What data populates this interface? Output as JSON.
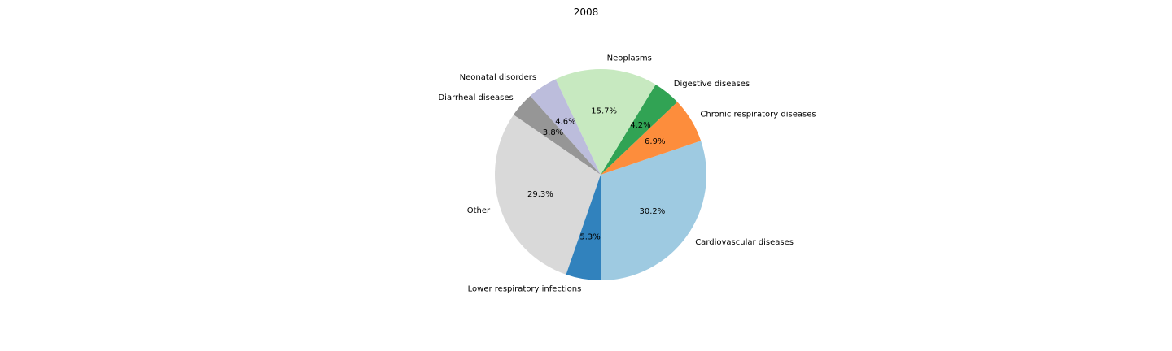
{
  "chart_data": {
    "type": "pie",
    "title": "2008",
    "start_angle_deg": 270,
    "direction": "counterclockwise",
    "slices": [
      {
        "label": "Cardiovascular diseases",
        "value": 30.2,
        "pct_label": "30.2%",
        "color": "#9ecae1"
      },
      {
        "label": "Chronic respiratory diseases",
        "value": 6.9,
        "pct_label": "6.9%",
        "color": "#fd8d3c"
      },
      {
        "label": "Digestive diseases",
        "value": 4.2,
        "pct_label": "4.2%",
        "color": "#31a354"
      },
      {
        "label": "Neoplasms",
        "value": 15.7,
        "pct_label": "15.7%",
        "color": "#c7e9c0"
      },
      {
        "label": "Neonatal disorders",
        "value": 4.6,
        "pct_label": "4.6%",
        "color": "#bcbddc"
      },
      {
        "label": "Diarrheal diseases",
        "value": 3.8,
        "pct_label": "3.8%",
        "color": "#969696"
      },
      {
        "label": "Other",
        "value": 29.3,
        "pct_label": "29.3%",
        "color": "#d9d9d9"
      },
      {
        "label": "Lower respiratory infections",
        "value": 5.3,
        "pct_label": "5.3%",
        "color": "#3182bd"
      }
    ]
  }
}
